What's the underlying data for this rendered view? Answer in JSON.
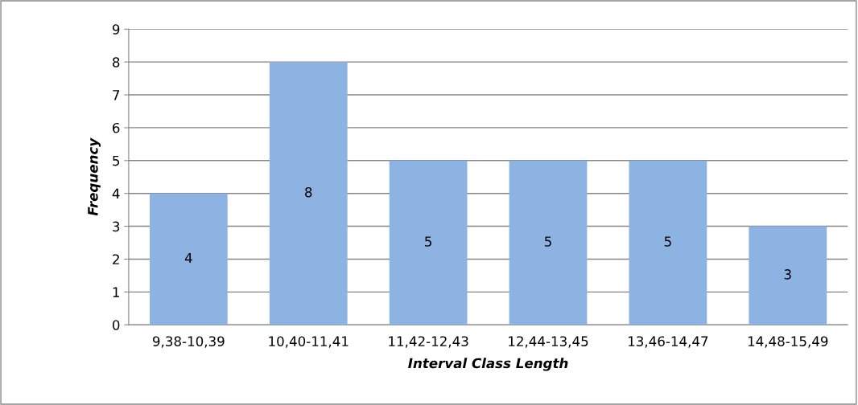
{
  "chart_data": {
    "type": "bar",
    "xlabel": "Interval Class Length",
    "ylabel": "Frequency",
    "categories": [
      "9,38-10,39",
      "10,40-11,41",
      "11,42-12,43",
      "12,44-13,45",
      "13,46-14,47",
      "14,48-15,49"
    ],
    "values": [
      4,
      8,
      5,
      5,
      5,
      3
    ],
    "color": "#8db3e2",
    "ylim": [
      0,
      9
    ],
    "yticks": [
      0,
      1,
      2,
      3,
      4,
      5,
      6,
      7,
      8,
      9
    ],
    "grid": "y",
    "data_labels": true
  }
}
